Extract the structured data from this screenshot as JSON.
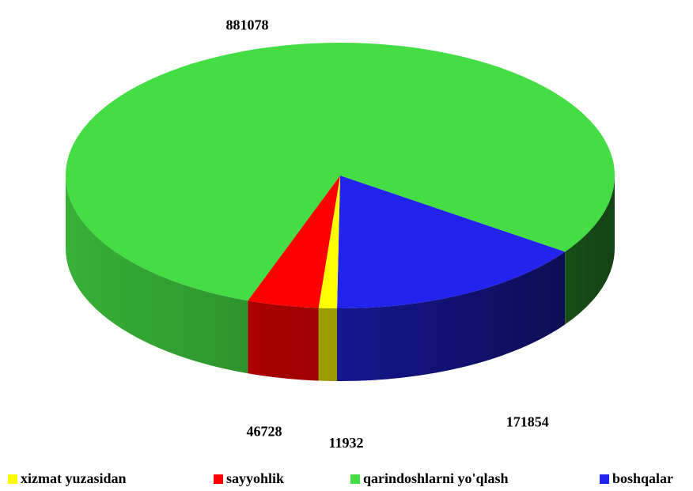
{
  "chart_data": {
    "type": "pie",
    "categories": [
      "xizmat yuzasidan",
      "sayyohlik",
      "qarindoshlarni yo'qlash",
      "boshqalar"
    ],
    "values": [
      11932,
      46728,
      881078,
      171854
    ],
    "colors": [
      "#ffff00",
      "#ff0000",
      "#44dd44",
      "#2323ee"
    ],
    "legend": "bottom"
  }
}
